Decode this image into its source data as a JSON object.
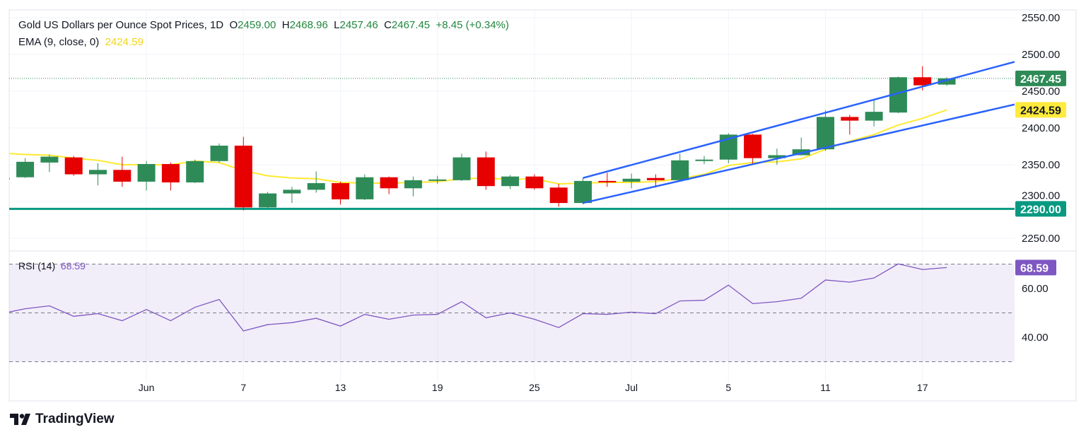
{
  "header": {
    "title": "Gold US Dollars per Ounce Spot Prices, 1D",
    "o_label": "O",
    "o": "2459.00",
    "h_label": "H",
    "h": "2468.96",
    "l_label": "L",
    "l": "2457.46",
    "c_label": "C",
    "c": "2467.45",
    "change": "+8.45 (+0.34%)",
    "ema_label": "EMA (9, close, 0)",
    "ema_value": "2424.59",
    "rsi_label": "RSI (14)",
    "rsi_value": "68.59"
  },
  "branding": {
    "logo_text": "TradingView"
  },
  "colors": {
    "up": "#2e8b57",
    "down": "#e60000",
    "ema": "#ffe930",
    "channel": "#2962ff",
    "support": "#089981",
    "rsi": "#7e57c2"
  },
  "chart_data": {
    "type": "candlestick",
    "price_axis": {
      "ylim": [
        2230,
        2560
      ],
      "ticks": [
        "2550.00",
        "2500.00",
        "2450.00",
        "2400.00",
        "2350.00",
        "2300.00",
        "2250.00"
      ]
    },
    "rsi_axis": {
      "ylim": [
        24,
        75
      ],
      "ticks": [
        "60.00",
        "40.00"
      ],
      "bands": [
        70,
        50,
        30
      ]
    },
    "time_labels": [
      {
        "bar": 6,
        "label": "Jun"
      },
      {
        "bar": 10,
        "label": "7"
      },
      {
        "bar": 14,
        "label": "13"
      },
      {
        "bar": 18,
        "label": "19"
      },
      {
        "bar": 22,
        "label": "25"
      },
      {
        "bar": 26,
        "label": "Jul"
      },
      {
        "bar": 30,
        "label": "5"
      },
      {
        "bar": 34,
        "label": "11"
      },
      {
        "bar": 38,
        "label": "17"
      }
    ],
    "ohlc": [
      [
        2330,
        2333,
        2329,
        2332
      ],
      [
        2333,
        2359,
        2332,
        2354
      ],
      [
        2353,
        2364,
        2340,
        2361
      ],
      [
        2360,
        2362,
        2335,
        2337
      ],
      [
        2337,
        2352,
        2322,
        2343
      ],
      [
        2343,
        2361,
        2320,
        2327
      ],
      [
        2327,
        2355,
        2315,
        2351
      ],
      [
        2351,
        2353,
        2315,
        2326
      ],
      [
        2326,
        2357,
        2325,
        2355
      ],
      [
        2355,
        2379,
        2353,
        2376
      ],
      [
        2376,
        2388,
        2288,
        2292
      ],
      [
        2292,
        2313,
        2289,
        2311
      ],
      [
        2311,
        2320,
        2298,
        2316
      ],
      [
        2316,
        2341,
        2312,
        2325
      ],
      [
        2325,
        2327,
        2296,
        2303
      ],
      [
        2303,
        2337,
        2302,
        2333
      ],
      [
        2333,
        2334,
        2310,
        2318
      ],
      [
        2318,
        2334,
        2307,
        2329
      ],
      [
        2329,
        2335,
        2324,
        2330
      ],
      [
        2329,
        2365,
        2328,
        2360
      ],
      [
        2360,
        2368,
        2316,
        2321
      ],
      [
        2321,
        2336,
        2317,
        2334
      ],
      [
        2334,
        2337,
        2316,
        2318
      ],
      [
        2319,
        2324,
        2293,
        2298
      ],
      [
        2298,
        2332,
        2296,
        2328
      ],
      [
        2328,
        2339,
        2320,
        2327
      ],
      [
        2327,
        2338,
        2318,
        2331
      ],
      [
        2332,
        2337,
        2319,
        2329
      ],
      [
        2329,
        2365,
        2328,
        2356
      ],
      [
        2356,
        2362,
        2351,
        2357
      ],
      [
        2357,
        2393,
        2352,
        2391
      ],
      [
        2391,
        2392,
        2350,
        2359
      ],
      [
        2359,
        2372,
        2350,
        2363
      ],
      [
        2363,
        2387,
        2363,
        2371
      ],
      [
        2371,
        2424,
        2369,
        2415
      ],
      [
        2415,
        2418,
        2391,
        2410
      ],
      [
        2410,
        2439,
        2402,
        2422
      ],
      [
        2421,
        2470,
        2420,
        2469
      ],
      [
        2469,
        2484,
        2451,
        2458
      ],
      [
        2459.0,
        2468.96,
        2457.46,
        2467.45
      ]
    ],
    "ema9": [
      2366,
      2364,
      2363,
      2359,
      2356,
      2350,
      2350,
      2350,
      2355,
      2353,
      2342,
      2335,
      2332,
      2331,
      2326,
      2325,
      2325,
      2326,
      2327,
      2331,
      2332,
      2330,
      2331,
      2324,
      2325,
      2326,
      2326,
      2327,
      2331,
      2337,
      2349,
      2353,
      2354,
      2358,
      2371,
      2382,
      2391,
      2404,
      2413,
      2424.59
    ],
    "rsi14": [
      49.7,
      51.7,
      52.9,
      48.6,
      49.7,
      46.8,
      51.4,
      46.8,
      52.3,
      55.5,
      42.6,
      45.2,
      46,
      47.8,
      44.6,
      49.4,
      47.4,
      49.1,
      49.4,
      54.6,
      48,
      50,
      47.4,
      44,
      49.7,
      49.4,
      50.3,
      49.7,
      54.9,
      55.2,
      61.4,
      53.8,
      54.6,
      56,
      63.5,
      62.6,
      64.3,
      70.1,
      67.8,
      68.59
    ],
    "channel_upper": [
      [
        24,
        2332
      ],
      [
        41.8,
        2490
      ]
    ],
    "channel_lower": [
      [
        24,
        2298
      ],
      [
        41.8,
        2432
      ]
    ],
    "support_level": "2290.00",
    "last_price_label": "2467.45",
    "ema_price_label": "2424.59",
    "rsi_price_label": "68.59"
  }
}
